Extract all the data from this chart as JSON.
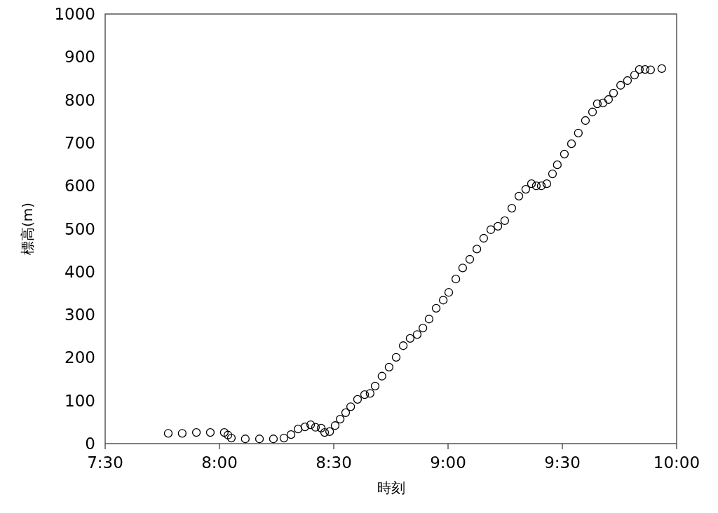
{
  "chart_data": {
    "type": "scatter",
    "xlabel": "時刻",
    "ylabel": "標高(m)",
    "marker": "circle",
    "grid": false,
    "xlim": [
      7.5,
      10
    ],
    "xticks": [
      {
        "value": 7.5,
        "label": "7:30"
      },
      {
        "value": 8,
        "label": "8:00"
      },
      {
        "value": 8.5,
        "label": "8:30"
      },
      {
        "value": 9,
        "label": "9:00"
      },
      {
        "value": 9.5,
        "label": "9:30"
      },
      {
        "value": 10,
        "label": "10:00"
      }
    ],
    "ylim": [
      0,
      1000
    ],
    "yticks": [
      0,
      100,
      200,
      300,
      400,
      500,
      600,
      700,
      800,
      900,
      1000
    ],
    "series": [
      {
        "color": "#000000",
        "x": [
          7.776,
          7.837,
          7.899,
          7.96,
          8.021,
          8.037,
          8.052,
          8.113,
          8.175,
          8.236,
          8.282,
          8.313,
          8.344,
          8.374,
          8.399,
          8.42,
          8.445,
          8.46,
          8.482,
          8.506,
          8.528,
          8.552,
          8.574,
          8.604,
          8.635,
          8.659,
          8.681,
          8.711,
          8.742,
          8.773,
          8.804,
          8.834,
          8.865,
          8.89,
          8.917,
          8.948,
          8.979,
          9.003,
          9.034,
          9.064,
          9.095,
          9.126,
          9.156,
          9.187,
          9.218,
          9.248,
          9.279,
          9.31,
          9.34,
          9.365,
          9.386,
          9.408,
          9.432,
          9.457,
          9.478,
          9.509,
          9.54,
          9.57,
          9.601,
          9.632,
          9.653,
          9.678,
          9.702,
          9.724,
          9.755,
          9.785,
          9.816,
          9.837,
          9.862,
          9.886,
          9.935
        ],
        "values": [
          24,
          24,
          26,
          26,
          26,
          20,
          13,
          11,
          11,
          11,
          13,
          21,
          34,
          39,
          44,
          38,
          36,
          26,
          28,
          42,
          57,
          72,
          86,
          103,
          114,
          117,
          134,
          157,
          178,
          201,
          228,
          245,
          254,
          269,
          290,
          315,
          334,
          352,
          383,
          409,
          429,
          453,
          478,
          498,
          506,
          519,
          548,
          576,
          592,
          605,
          600,
          600,
          605,
          628,
          649,
          674,
          698,
          723,
          752,
          772,
          791,
          793,
          801,
          816,
          834,
          845,
          858,
          871,
          871,
          870,
          873
        ]
      }
    ]
  }
}
